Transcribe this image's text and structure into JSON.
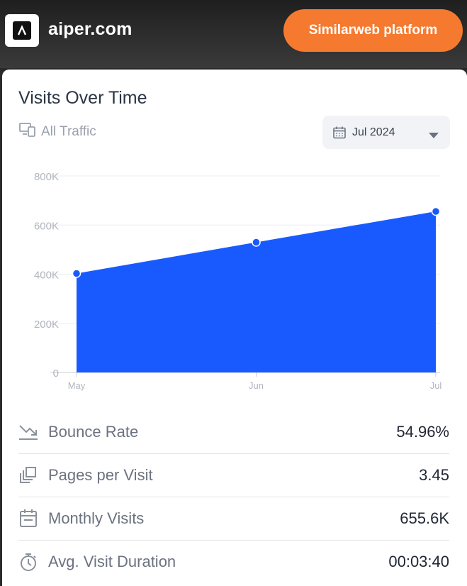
{
  "header": {
    "site": "aiper.com",
    "platform_button": "Similarweb platform"
  },
  "card": {
    "title": "Visits Over Time",
    "traffic_label": "All Traffic",
    "date_select": "Jul 2024"
  },
  "chart_data": {
    "type": "area",
    "title": "Visits Over Time",
    "categories": [
      "May",
      "Jun",
      "Jul"
    ],
    "values": [
      403000,
      530000,
      655600
    ],
    "ylim": [
      0,
      800000
    ],
    "yticks": [
      0,
      200000,
      400000,
      600000,
      800000
    ],
    "ytick_labels": [
      "0",
      "200K",
      "400K",
      "600K",
      "800K"
    ],
    "grid": true,
    "color": "#195afe"
  },
  "metrics": [
    {
      "label": "Bounce Rate",
      "value": "54.96%",
      "icon": "bounce-icon"
    },
    {
      "label": "Pages per Visit",
      "value": "3.45",
      "icon": "pages-icon"
    },
    {
      "label": "Monthly Visits",
      "value": "655.6K",
      "icon": "calendar-icon"
    },
    {
      "label": "Avg. Visit Duration",
      "value": "00:03:40",
      "icon": "stopwatch-icon"
    }
  ]
}
